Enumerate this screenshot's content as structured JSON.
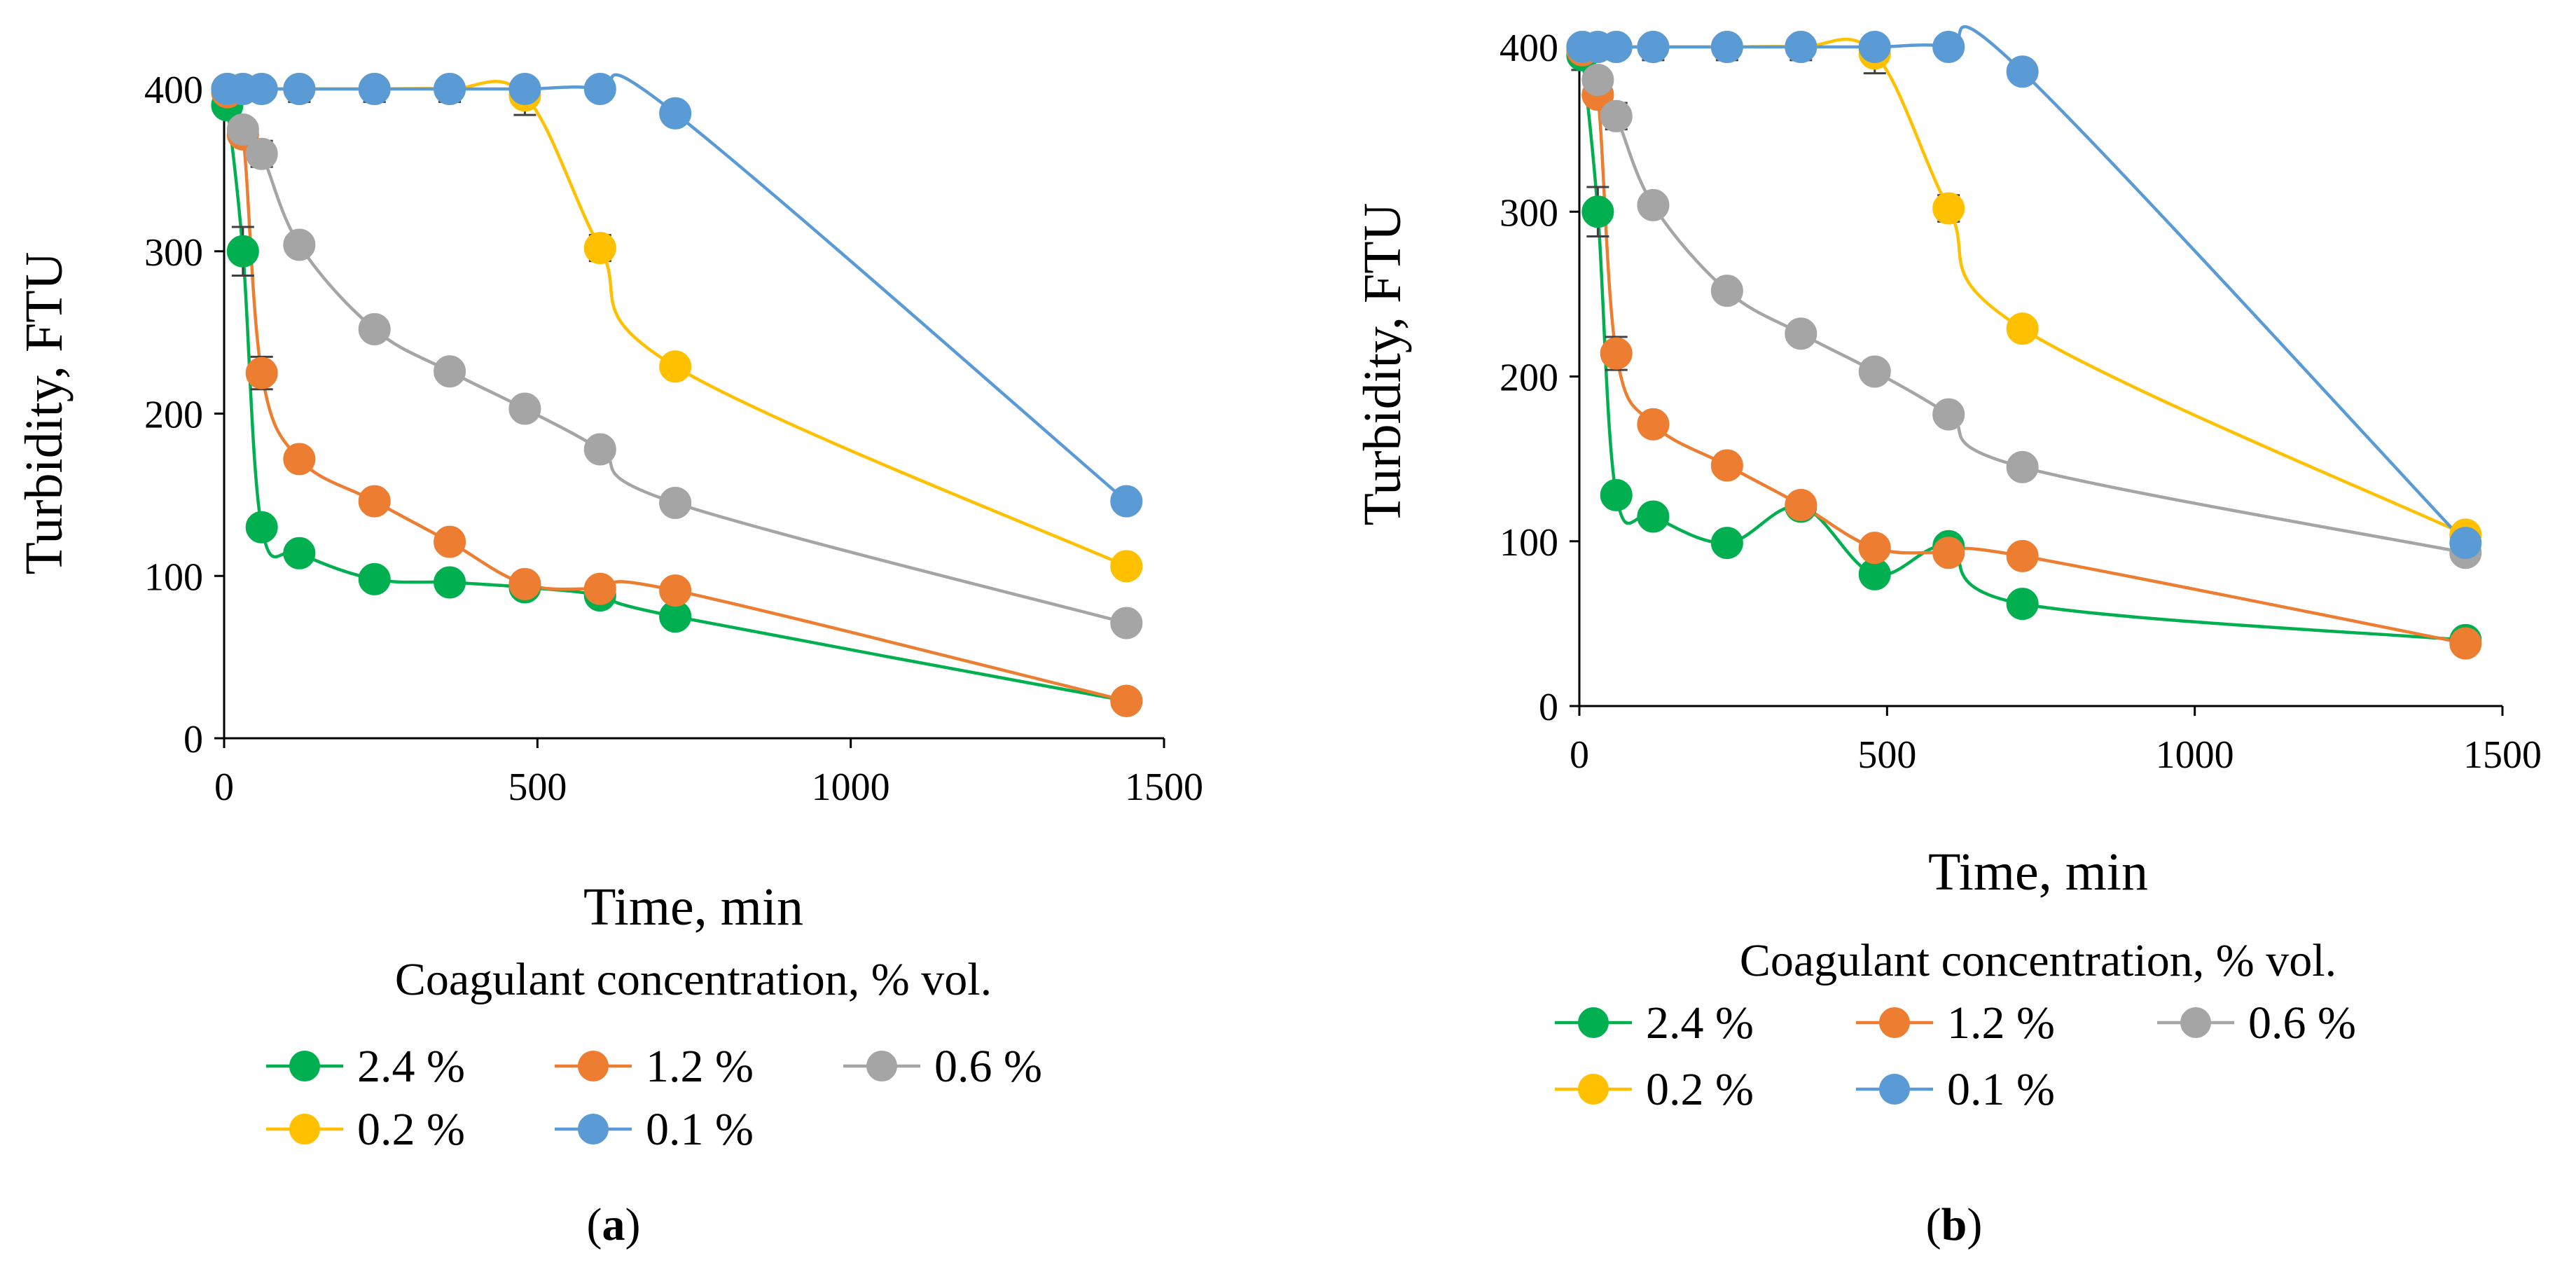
{
  "chart_data": [
    {
      "type": "line",
      "panel_label": "(a)",
      "xlabel": "Time, min",
      "ylabel": "Turbidity, FTU",
      "xlim": [
        0,
        1500
      ],
      "ylim": [
        0,
        400
      ],
      "xticks": [
        "0",
        "500",
        "1000",
        "1500"
      ],
      "yticks": [
        "0",
        "100",
        "200",
        "300",
        "400"
      ],
      "legend_title": "Coagulant concentration, % vol.",
      "series": [
        {
          "name": "2.4 %",
          "color": "#00b050",
          "x": [
            5,
            30,
            60,
            120,
            240,
            360,
            480,
            600,
            720,
            1440
          ],
          "y": [
            390,
            300,
            130,
            114,
            98,
            96,
            93,
            88,
            75,
            23
          ]
        },
        {
          "name": "1.2 %",
          "color": "#ed7d31",
          "x": [
            5,
            30,
            60,
            120,
            240,
            360,
            480,
            600,
            720,
            1440
          ],
          "y": [
            398,
            372,
            225,
            172,
            146,
            121,
            95,
            92,
            91,
            23
          ]
        },
        {
          "name": "0.6 %",
          "color": "#a5a5a5",
          "x": [
            5,
            30,
            60,
            120,
            240,
            360,
            480,
            600,
            720,
            1440
          ],
          "y": [
            400,
            375,
            360,
            304,
            252,
            226,
            203,
            178,
            145,
            71
          ]
        },
        {
          "name": "0.2 %",
          "color": "#ffc000",
          "x": [
            5,
            30,
            60,
            120,
            240,
            360,
            480,
            600,
            720,
            1440
          ],
          "y": [
            400,
            400,
            400,
            400,
            400,
            400,
            396,
            302,
            229,
            106
          ]
        },
        {
          "name": "0.1 %",
          "color": "#5b9bd5",
          "x": [
            5,
            30,
            60,
            120,
            240,
            360,
            480,
            600,
            720,
            1440
          ],
          "y": [
            400,
            400,
            400,
            400,
            400,
            400,
            400,
            400,
            385,
            146
          ]
        }
      ]
    },
    {
      "type": "line",
      "panel_label": "(b)",
      "xlabel": "Time, min",
      "ylabel": "Turbidity, FTU",
      "xlim": [
        0,
        1500
      ],
      "ylim": [
        0,
        400
      ],
      "xticks": [
        "0",
        "500",
        "1000",
        "1500"
      ],
      "yticks": [
        "0",
        "100",
        "200",
        "300",
        "400"
      ],
      "legend_title": "Coagulant concentration, % vol.",
      "series": [
        {
          "name": "2.4 %",
          "color": "#00b050",
          "x": [
            5,
            30,
            60,
            120,
            240,
            360,
            480,
            600,
            720,
            1440
          ],
          "y": [
            395,
            300,
            128,
            115,
            99,
            121,
            80,
            97,
            62,
            40
          ]
        },
        {
          "name": "1.2 %",
          "color": "#ed7d31",
          "x": [
            5,
            30,
            60,
            120,
            240,
            360,
            480,
            600,
            720,
            1440
          ],
          "y": [
            398,
            371,
            214,
            171,
            146,
            122,
            96,
            93,
            91,
            38
          ]
        },
        {
          "name": "0.6 %",
          "color": "#a5a5a5",
          "x": [
            5,
            30,
            60,
            120,
            240,
            360,
            480,
            600,
            720,
            1440
          ],
          "y": [
            400,
            380,
            358,
            304,
            252,
            226,
            203,
            177,
            145,
            93
          ]
        },
        {
          "name": "0.2 %",
          "color": "#ffc000",
          "x": [
            5,
            30,
            60,
            120,
            240,
            360,
            480,
            600,
            720,
            1440
          ],
          "y": [
            400,
            400,
            400,
            400,
            400,
            400,
            396,
            302,
            229,
            104
          ]
        },
        {
          "name": "0.1 %",
          "color": "#5b9bd5",
          "x": [
            5,
            30,
            60,
            120,
            240,
            360,
            480,
            600,
            720,
            1440
          ],
          "y": [
            400,
            400,
            400,
            400,
            400,
            400,
            400,
            400,
            385,
            99
          ]
        }
      ]
    }
  ]
}
